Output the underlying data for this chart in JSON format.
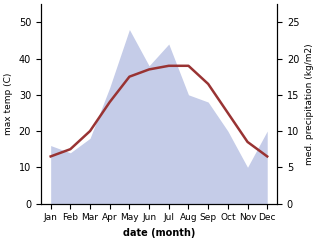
{
  "months": [
    "Jan",
    "Feb",
    "Mar",
    "Apr",
    "May",
    "Jun",
    "Jul",
    "Aug",
    "Sep",
    "Oct",
    "Nov",
    "Dec"
  ],
  "temperature": [
    13,
    15,
    20,
    28,
    35,
    37,
    38,
    38,
    33,
    25,
    17,
    13
  ],
  "precipitation": [
    8,
    7,
    9,
    16,
    24,
    19,
    22,
    15,
    14,
    10,
    5,
    10
  ],
  "temp_color": "#993333",
  "precip_color": "#c5cce8",
  "temp_ylim": [
    0,
    55
  ],
  "precip_ylim": [
    0,
    27.5
  ],
  "temp_yticks": [
    0,
    10,
    20,
    30,
    40,
    50
  ],
  "precip_yticks": [
    0,
    5,
    10,
    15,
    20,
    25
  ],
  "ylabel_left": "max temp (C)",
  "ylabel_right": "med. precipitation (kg/m2)",
  "xlabel": "date (month)",
  "bg_color": "#ffffff",
  "line_width": 1.8,
  "fig_width": 3.18,
  "fig_height": 2.42,
  "dpi": 100
}
